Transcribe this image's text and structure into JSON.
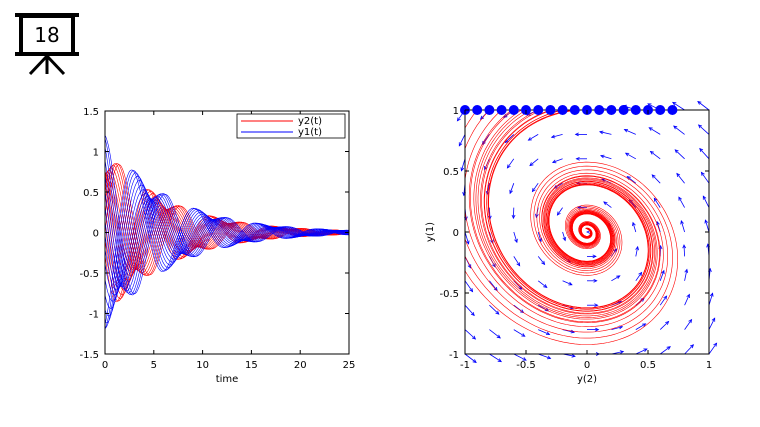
{
  "slide": {
    "number": "18",
    "icon": "presentation-board-icon"
  },
  "chart_data": [
    {
      "type": "line",
      "xlabel": "time",
      "ylabel": "",
      "xlim": [
        0,
        25
      ],
      "ylim": [
        -1.5,
        1.5
      ],
      "xticks": [
        0,
        5,
        10,
        15,
        20,
        25
      ],
      "yticks": [
        -1.5,
        -1,
        -0.5,
        0,
        0.5,
        1,
        1.5
      ],
      "xtick_labels": [
        "0",
        "5",
        "10",
        "15",
        "20",
        "25"
      ],
      "ytick_labels": [
        "-1.5",
        "-1",
        "-0.5",
        "0",
        "0.5",
        "1",
        "1.5"
      ],
      "legend_position": "top-right",
      "series": [
        {
          "name": "y2(t)",
          "color": "#ff0000",
          "amplitude": 1.05,
          "decay": 0.15,
          "period": 6.3,
          "phase_shift": 0.0,
          "trajectories": 18
        },
        {
          "name": "y1(t)",
          "color": "#0000ff",
          "amplitude": 1.2,
          "decay": 0.15,
          "period": 6.3,
          "phase_shift": 1.57,
          "trajectories": 18
        }
      ]
    },
    {
      "type": "scatter",
      "xlabel": "y(2)",
      "ylabel": "y(1)",
      "xlim": [
        -1,
        1
      ],
      "ylim": [
        -1,
        1
      ],
      "xticks": [
        -1,
        -0.5,
        0,
        0.5,
        1
      ],
      "yticks": [
        -1,
        -0.5,
        0,
        0.5,
        1
      ],
      "xtick_labels": [
        "-1",
        "-0.5",
        "0",
        "0.5",
        "1"
      ],
      "ytick_labels": [
        "-1",
        "-0.5",
        "0",
        "0.5",
        "1"
      ],
      "initial_points": {
        "y": 1,
        "x": [
          -1,
          -0.9,
          -0.8,
          -0.7,
          -0.6,
          -0.5,
          -0.4,
          -0.3,
          -0.2,
          -0.1,
          0,
          0.1,
          0.2,
          0.3,
          0.4,
          0.5,
          0.6,
          0.7
        ],
        "color": "#0000ff"
      },
      "trajectory_color": "#ff0000",
      "vector_field_color": "#0000ff",
      "vector_grid": {
        "count": 11,
        "min": -1,
        "max": 1
      },
      "damping": 0.3
    }
  ]
}
